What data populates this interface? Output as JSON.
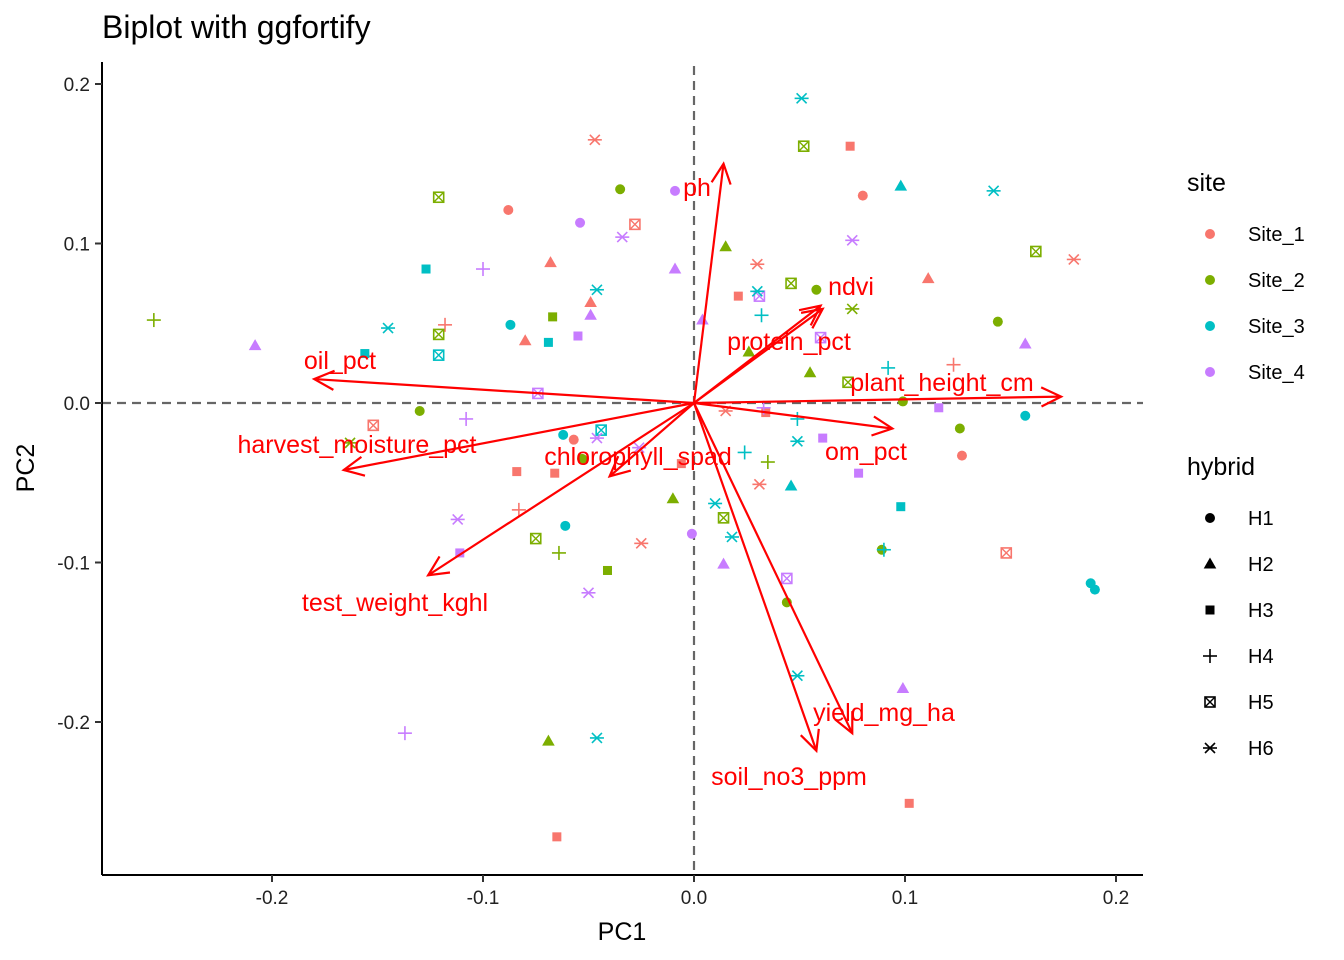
{
  "chart_data": {
    "type": "scatter",
    "title": "Biplot with ggfortify",
    "xlabel": "PC1",
    "ylabel": "PC2",
    "xlim": [
      -0.28,
      0.21
    ],
    "ylim": [
      -0.295,
      0.215
    ],
    "xticks": [
      -0.2,
      -0.1,
      0.0,
      0.1,
      0.2
    ],
    "xtick_labels": [
      "-0.2",
      "-0.1",
      "0.0",
      "0.1",
      "0.2"
    ],
    "yticks": [
      0.2,
      0.1,
      0.0,
      -0.1,
      -0.2
    ],
    "ytick_labels": [
      "0.2",
      "0.1",
      "0.0",
      "-0.1",
      "-0.2"
    ],
    "grid": false,
    "reference_lines": "dashed at x=0 and y=0",
    "legend_position": "right",
    "legend_color": {
      "title": "site",
      "entries": [
        {
          "label": "Site_1",
          "color": "#F8766D"
        },
        {
          "label": "Site_2",
          "color": "#7CAE00"
        },
        {
          "label": "Site_3",
          "color": "#00BFC4"
        },
        {
          "label": "Site_4",
          "color": "#C77CFF"
        }
      ]
    },
    "legend_shape": {
      "title": "hybrid",
      "entries": [
        {
          "label": "H1",
          "shape": "circle"
        },
        {
          "label": "H2",
          "shape": "triangle"
        },
        {
          "label": "H3",
          "shape": "square"
        },
        {
          "label": "H4",
          "shape": "plus"
        },
        {
          "label": "H5",
          "shape": "boxx"
        },
        {
          "label": "H6",
          "shape": "asterisk"
        }
      ]
    },
    "loadings": [
      {
        "name": "ph",
        "x": 0.014,
        "y": 0.15
      },
      {
        "name": "ndvi",
        "x": 0.06,
        "y": 0.061
      },
      {
        "name": "protein_pct",
        "x": 0.061,
        "y": 0.059
      },
      {
        "name": "plant_height_cm",
        "x": 0.174,
        "y": 0.004
      },
      {
        "name": "om_pct",
        "x": 0.094,
        "y": -0.016
      },
      {
        "name": "oil_pct",
        "x": -0.18,
        "y": 0.015
      },
      {
        "name": "harvest_moisture_pct",
        "x": -0.166,
        "y": -0.042
      },
      {
        "name": "chlorophyll_spad",
        "x": -0.04,
        "y": -0.046
      },
      {
        "name": "test_weight_kghl",
        "x": -0.126,
        "y": -0.108
      },
      {
        "name": "yield_mg_ha",
        "x": 0.075,
        "y": -0.207
      },
      {
        "name": "soil_no3_ppm",
        "x": 0.058,
        "y": -0.218
      }
    ],
    "points": [
      {
        "x": -0.047,
        "y": 0.165,
        "site": "Site_1",
        "hybrid": "H6"
      },
      {
        "x": -0.035,
        "y": 0.134,
        "site": "Site_2",
        "hybrid": "H1"
      },
      {
        "x": -0.009,
        "y": 0.133,
        "site": "Site_4",
        "hybrid": "H1"
      },
      {
        "x": -0.121,
        "y": 0.129,
        "site": "Site_2",
        "hybrid": "H5"
      },
      {
        "x": -0.088,
        "y": 0.121,
        "site": "Site_1",
        "hybrid": "H1"
      },
      {
        "x": -0.054,
        "y": 0.113,
        "site": "Site_4",
        "hybrid": "H1"
      },
      {
        "x": -0.028,
        "y": 0.112,
        "site": "Site_1",
        "hybrid": "H5"
      },
      {
        "x": -0.034,
        "y": 0.104,
        "site": "Site_4",
        "hybrid": "H6"
      },
      {
        "x": 0.051,
        "y": 0.191,
        "site": "Site_3",
        "hybrid": "H6"
      },
      {
        "x": 0.052,
        "y": 0.161,
        "site": "Site_2",
        "hybrid": "H5"
      },
      {
        "x": 0.074,
        "y": 0.161,
        "site": "Site_1",
        "hybrid": "H3"
      },
      {
        "x": 0.098,
        "y": 0.136,
        "site": "Site_3",
        "hybrid": "H2"
      },
      {
        "x": 0.08,
        "y": 0.13,
        "site": "Site_1",
        "hybrid": "H1"
      },
      {
        "x": 0.142,
        "y": 0.133,
        "site": "Site_3",
        "hybrid": "H6"
      },
      {
        "x": 0.075,
        "y": 0.102,
        "site": "Site_4",
        "hybrid": "H6"
      },
      {
        "x": 0.015,
        "y": 0.098,
        "site": "Site_2",
        "hybrid": "H2"
      },
      {
        "x": 0.03,
        "y": 0.087,
        "site": "Site_1",
        "hybrid": "H6"
      },
      {
        "x": 0.162,
        "y": 0.095,
        "site": "Site_2",
        "hybrid": "H5"
      },
      {
        "x": 0.18,
        "y": 0.09,
        "site": "Site_1",
        "hybrid": "H6"
      },
      {
        "x": 0.111,
        "y": 0.078,
        "site": "Site_1",
        "hybrid": "H2"
      },
      {
        "x": 0.046,
        "y": 0.075,
        "site": "Site_2",
        "hybrid": "H5"
      },
      {
        "x": 0.058,
        "y": 0.071,
        "site": "Site_2",
        "hybrid": "H1"
      },
      {
        "x": 0.031,
        "y": 0.067,
        "site": "Site_4",
        "hybrid": "H5"
      },
      {
        "x": 0.03,
        "y": 0.07,
        "site": "Site_3",
        "hybrid": "H6"
      },
      {
        "x": 0.021,
        "y": 0.067,
        "site": "Site_1",
        "hybrid": "H3"
      },
      {
        "x": 0.075,
        "y": 0.059,
        "site": "Site_2",
        "hybrid": "H6"
      },
      {
        "x": 0.032,
        "y": 0.055,
        "site": "Site_3",
        "hybrid": "H4"
      },
      {
        "x": 0.144,
        "y": 0.051,
        "site": "Site_2",
        "hybrid": "H1"
      },
      {
        "x": 0.06,
        "y": 0.041,
        "site": "Site_4",
        "hybrid": "H5"
      },
      {
        "x": 0.026,
        "y": 0.032,
        "site": "Site_2",
        "hybrid": "H2"
      },
      {
        "x": 0.157,
        "y": 0.037,
        "site": "Site_4",
        "hybrid": "H2"
      },
      {
        "x": 0.055,
        "y": 0.019,
        "site": "Site_2",
        "hybrid": "H2"
      },
      {
        "x": 0.092,
        "y": 0.022,
        "site": "Site_3",
        "hybrid": "H4"
      },
      {
        "x": 0.123,
        "y": 0.024,
        "site": "Site_1",
        "hybrid": "H4"
      },
      {
        "x": 0.073,
        "y": 0.013,
        "site": "Site_2",
        "hybrid": "H5"
      },
      {
        "x": 0.099,
        "y": 0.001,
        "site": "Site_2",
        "hybrid": "H1"
      },
      {
        "x": 0.116,
        "y": -0.003,
        "site": "Site_4",
        "hybrid": "H3"
      },
      {
        "x": 0.157,
        "y": -0.008,
        "site": "Site_3",
        "hybrid": "H1"
      },
      {
        "x": 0.126,
        "y": -0.016,
        "site": "Site_2",
        "hybrid": "H1"
      },
      {
        "x": 0.127,
        "y": -0.033,
        "site": "Site_1",
        "hybrid": "H1"
      },
      {
        "x": 0.015,
        "y": -0.005,
        "site": "Site_1",
        "hybrid": "H6"
      },
      {
        "x": 0.034,
        "y": -0.006,
        "site": "Site_1",
        "hybrid": "H3"
      },
      {
        "x": 0.033,
        "y": -0.003,
        "site": "Site_4",
        "hybrid": "H4"
      },
      {
        "x": 0.049,
        "y": -0.01,
        "site": "Site_3",
        "hybrid": "H4"
      },
      {
        "x": 0.061,
        "y": -0.022,
        "site": "Site_4",
        "hybrid": "H3"
      },
      {
        "x": 0.049,
        "y": -0.024,
        "site": "Site_3",
        "hybrid": "H6"
      },
      {
        "x": 0.035,
        "y": -0.037,
        "site": "Site_2",
        "hybrid": "H4"
      },
      {
        "x": 0.024,
        "y": -0.031,
        "site": "Site_3",
        "hybrid": "H4"
      },
      {
        "x": 0.031,
        "y": -0.051,
        "site": "Site_1",
        "hybrid": "H6"
      },
      {
        "x": 0.046,
        "y": -0.052,
        "site": "Site_3",
        "hybrid": "H2"
      },
      {
        "x": 0.078,
        "y": -0.044,
        "site": "Site_4",
        "hybrid": "H3"
      },
      {
        "x": 0.098,
        "y": -0.065,
        "site": "Site_3",
        "hybrid": "H3"
      },
      {
        "x": 0.01,
        "y": -0.063,
        "site": "Site_3",
        "hybrid": "H6"
      },
      {
        "x": 0.014,
        "y": -0.072,
        "site": "Site_2",
        "hybrid": "H5"
      },
      {
        "x": 0.018,
        "y": -0.084,
        "site": "Site_3",
        "hybrid": "H6"
      },
      {
        "x": 0.089,
        "y": -0.092,
        "site": "Site_2",
        "hybrid": "H1"
      },
      {
        "x": 0.09,
        "y": -0.092,
        "site": "Site_3",
        "hybrid": "H4"
      },
      {
        "x": 0.148,
        "y": -0.094,
        "site": "Site_1",
        "hybrid": "H5"
      },
      {
        "x": 0.188,
        "y": -0.113,
        "site": "Site_3",
        "hybrid": "H1"
      },
      {
        "x": 0.19,
        "y": -0.117,
        "site": "Site_3",
        "hybrid": "H1"
      },
      {
        "x": 0.044,
        "y": -0.11,
        "site": "Site_4",
        "hybrid": "H5"
      },
      {
        "x": 0.044,
        "y": -0.125,
        "site": "Site_2",
        "hybrid": "H1"
      },
      {
        "x": 0.049,
        "y": -0.171,
        "site": "Site_3",
        "hybrid": "H6"
      },
      {
        "x": 0.099,
        "y": -0.179,
        "site": "Site_4",
        "hybrid": "H2"
      },
      {
        "x": 0.102,
        "y": -0.251,
        "site": "Site_1",
        "hybrid": "H3"
      },
      {
        "x": -0.001,
        "y": -0.082,
        "site": "Site_4",
        "hybrid": "H1"
      },
      {
        "x": 0.014,
        "y": -0.101,
        "site": "Site_4",
        "hybrid": "H2"
      },
      {
        "x": -0.01,
        "y": -0.06,
        "site": "Site_2",
        "hybrid": "H2"
      },
      {
        "x": -0.025,
        "y": -0.088,
        "site": "Site_1",
        "hybrid": "H6"
      },
      {
        "x": -0.006,
        "y": -0.038,
        "site": "Site_1",
        "hybrid": "H3"
      },
      {
        "x": -0.026,
        "y": -0.028,
        "site": "Site_4",
        "hybrid": "H6"
      },
      {
        "x": -0.009,
        "y": 0.084,
        "site": "Site_4",
        "hybrid": "H2"
      },
      {
        "x": 0.004,
        "y": 0.052,
        "site": "Site_4",
        "hybrid": "H2"
      },
      {
        "x": -0.046,
        "y": 0.071,
        "site": "Site_3",
        "hybrid": "H6"
      },
      {
        "x": -0.049,
        "y": 0.063,
        "site": "Site_1",
        "hybrid": "H2"
      },
      {
        "x": -0.049,
        "y": 0.055,
        "site": "Site_4",
        "hybrid": "H2"
      },
      {
        "x": -0.068,
        "y": 0.088,
        "site": "Site_1",
        "hybrid": "H2"
      },
      {
        "x": -0.067,
        "y": 0.054,
        "site": "Site_2",
        "hybrid": "H3"
      },
      {
        "x": -0.069,
        "y": 0.038,
        "site": "Site_3",
        "hybrid": "H3"
      },
      {
        "x": -0.055,
        "y": 0.042,
        "site": "Site_4",
        "hybrid": "H3"
      },
      {
        "x": -0.08,
        "y": 0.039,
        "site": "Site_1",
        "hybrid": "H2"
      },
      {
        "x": -0.087,
        "y": 0.049,
        "site": "Site_3",
        "hybrid": "H1"
      },
      {
        "x": -0.1,
        "y": 0.084,
        "site": "Site_4",
        "hybrid": "H4"
      },
      {
        "x": -0.127,
        "y": 0.084,
        "site": "Site_3",
        "hybrid": "H3"
      },
      {
        "x": -0.118,
        "y": 0.049,
        "site": "Site_1",
        "hybrid": "H4"
      },
      {
        "x": -0.121,
        "y": 0.043,
        "site": "Site_2",
        "hybrid": "H5"
      },
      {
        "x": -0.121,
        "y": 0.03,
        "site": "Site_3",
        "hybrid": "H5"
      },
      {
        "x": -0.145,
        "y": 0.047,
        "site": "Site_3",
        "hybrid": "H6"
      },
      {
        "x": -0.156,
        "y": 0.031,
        "site": "Site_3",
        "hybrid": "H3"
      },
      {
        "x": -0.208,
        "y": 0.036,
        "site": "Site_4",
        "hybrid": "H2"
      },
      {
        "x": -0.256,
        "y": 0.052,
        "site": "Site_2",
        "hybrid": "H4"
      },
      {
        "x": -0.074,
        "y": 0.006,
        "site": "Site_4",
        "hybrid": "H5"
      },
      {
        "x": -0.13,
        "y": -0.005,
        "site": "Site_2",
        "hybrid": "H1"
      },
      {
        "x": -0.108,
        "y": -0.01,
        "site": "Site_4",
        "hybrid": "H4"
      },
      {
        "x": -0.152,
        "y": -0.014,
        "site": "Site_1",
        "hybrid": "H5"
      },
      {
        "x": -0.163,
        "y": -0.025,
        "site": "Site_2",
        "hybrid": "H6"
      },
      {
        "x": -0.062,
        "y": -0.02,
        "site": "Site_3",
        "hybrid": "H1"
      },
      {
        "x": -0.057,
        "y": -0.023,
        "site": "Site_1",
        "hybrid": "H1"
      },
      {
        "x": -0.044,
        "y": -0.017,
        "site": "Site_3",
        "hybrid": "H5"
      },
      {
        "x": -0.046,
        "y": -0.022,
        "site": "Site_4",
        "hybrid": "H6"
      },
      {
        "x": -0.053,
        "y": -0.035,
        "site": "Site_2",
        "hybrid": "H1"
      },
      {
        "x": -0.066,
        "y": -0.044,
        "site": "Site_1",
        "hybrid": "H3"
      },
      {
        "x": -0.084,
        "y": -0.043,
        "site": "Site_1",
        "hybrid": "H3"
      },
      {
        "x": -0.083,
        "y": -0.067,
        "site": "Site_1",
        "hybrid": "H4"
      },
      {
        "x": -0.075,
        "y": -0.085,
        "site": "Site_2",
        "hybrid": "H5"
      },
      {
        "x": -0.061,
        "y": -0.077,
        "site": "Site_3",
        "hybrid": "H1"
      },
      {
        "x": -0.064,
        "y": -0.094,
        "site": "Site_2",
        "hybrid": "H4"
      },
      {
        "x": -0.112,
        "y": -0.073,
        "site": "Site_4",
        "hybrid": "H6"
      },
      {
        "x": -0.111,
        "y": -0.094,
        "site": "Site_4",
        "hybrid": "H3"
      },
      {
        "x": -0.041,
        "y": -0.105,
        "site": "Site_2",
        "hybrid": "H3"
      },
      {
        "x": -0.05,
        "y": -0.119,
        "site": "Site_4",
        "hybrid": "H6"
      },
      {
        "x": -0.137,
        "y": -0.207,
        "site": "Site_4",
        "hybrid": "H4"
      },
      {
        "x": -0.069,
        "y": -0.212,
        "site": "Site_2",
        "hybrid": "H2"
      },
      {
        "x": -0.046,
        "y": -0.21,
        "site": "Site_3",
        "hybrid": "H6"
      },
      {
        "x": -0.065,
        "y": -0.272,
        "site": "Site_1",
        "hybrid": "H3"
      }
    ]
  }
}
